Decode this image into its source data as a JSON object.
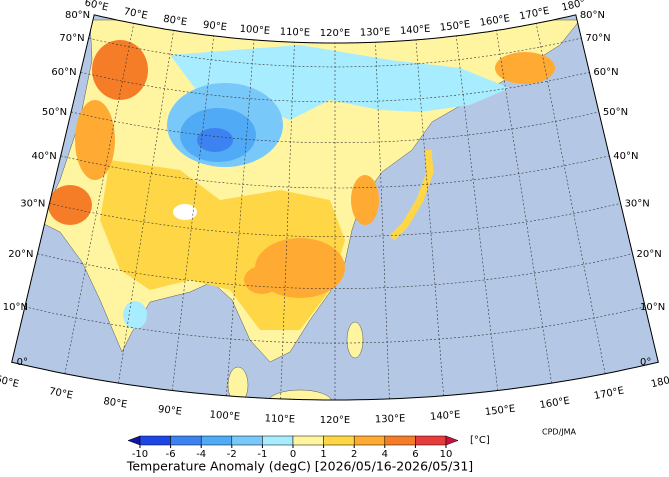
{
  "map": {
    "lons": [
      {
        "value": 60,
        "label": "60°E"
      },
      {
        "value": 70,
        "label": "70°E"
      },
      {
        "value": 80,
        "label": "80°E"
      },
      {
        "value": 90,
        "label": "90°E"
      },
      {
        "value": 100,
        "label": "100°E"
      },
      {
        "value": 110,
        "label": "110°E"
      },
      {
        "value": 120,
        "label": "120°E"
      },
      {
        "value": 130,
        "label": "130°E"
      },
      {
        "value": 140,
        "label": "140°E"
      },
      {
        "value": 150,
        "label": "150°E"
      },
      {
        "value": 160,
        "label": "160°E"
      },
      {
        "value": 170,
        "label": "170°E"
      },
      {
        "value": 180,
        "label": "180°"
      }
    ],
    "lats": [
      {
        "value": 0,
        "label": "0°"
      },
      {
        "value": 10,
        "label": "10°N"
      },
      {
        "value": 20,
        "label": "20°N"
      },
      {
        "value": 30,
        "label": "30°N"
      },
      {
        "value": 40,
        "label": "40°N"
      },
      {
        "value": 50,
        "label": "50°N"
      },
      {
        "value": 60,
        "label": "60°N"
      },
      {
        "value": 70,
        "label": "70°N"
      },
      {
        "value": 80,
        "label": "80°N"
      }
    ]
  },
  "colorbar": {
    "ticks": [
      -10,
      -6,
      -4,
      -2,
      -1,
      0,
      1,
      2,
      4,
      6,
      10
    ],
    "colors": [
      "#1414a0",
      "#1e46e6",
      "#3c82f0",
      "#50aaf5",
      "#78c8fa",
      "#a8ecff",
      "#fff5a0",
      "#ffd746",
      "#ffaa32",
      "#f57d28",
      "#e63c3c",
      "#c8143c"
    ],
    "unit": "[°C]"
  },
  "title": "Temperature Anomaly (degC) [2026/05/16-2026/05/31]",
  "credit": "CPD/JMA"
}
